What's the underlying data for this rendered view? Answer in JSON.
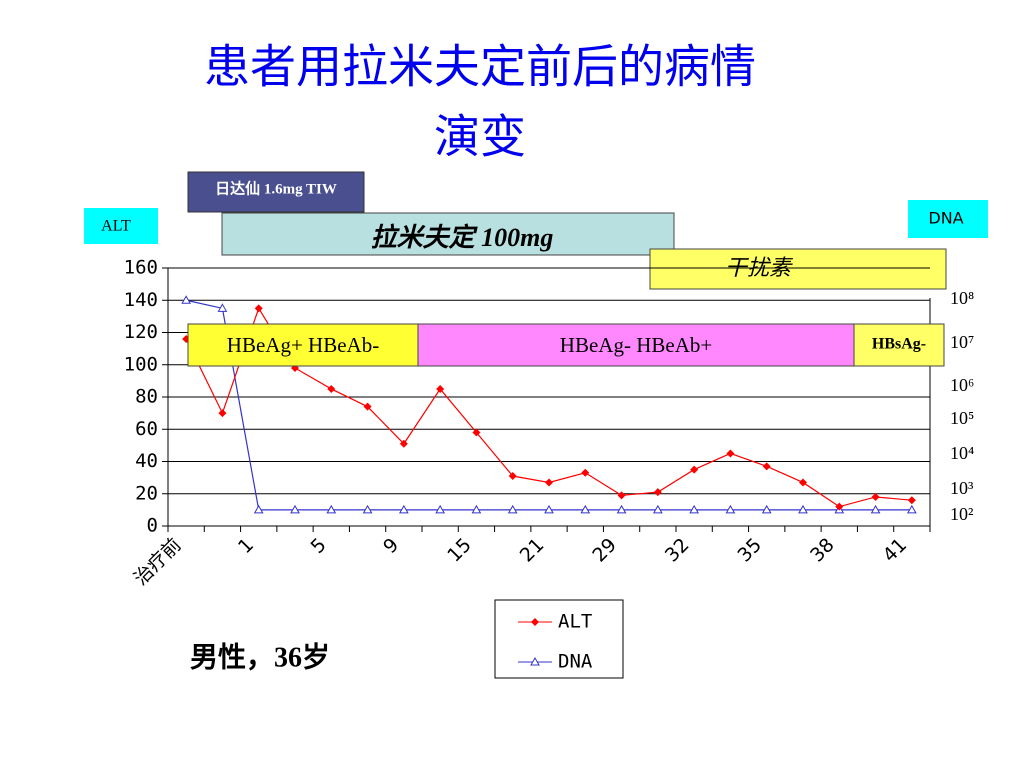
{
  "chart_data": {
    "type": "line",
    "title": [
      "患者用拉米夫定前后的病情",
      "演变"
    ],
    "categories": [
      "治疗前",
      null,
      "1",
      null,
      "5",
      null,
      "9",
      null,
      "15",
      null,
      "21",
      null,
      "29",
      null,
      "32",
      null,
      "35",
      null,
      "38",
      null,
      "41"
    ],
    "series": [
      {
        "name": "ALT",
        "color": "#ff0000",
        "marker": "diamond",
        "values": [
          116,
          70,
          135,
          98,
          85,
          74,
          51,
          85,
          58,
          31,
          27,
          33,
          19,
          21,
          35,
          45,
          37,
          27,
          12,
          18,
          16
        ]
      },
      {
        "name": "DNA",
        "color": "#3333cc",
        "marker": "triangle",
        "values": [
          140,
          135,
          10,
          10,
          10,
          10,
          10,
          10,
          10,
          10,
          10,
          10,
          10,
          10,
          10,
          10,
          10,
          10,
          10,
          10,
          10
        ]
      }
    ],
    "ylim": [
      0,
      160
    ],
    "yticks": [
      0,
      20,
      40,
      60,
      80,
      100,
      120,
      140,
      160
    ],
    "grid": true,
    "right_axis_labels": [
      "10⁸",
      "10⁷",
      "10⁶",
      "10⁵",
      "10⁴",
      "10³",
      "10²"
    ],
    "annotations": {
      "thymosin": "日达仙 1.6mg TIW",
      "alt_box": "ALT",
      "dna_box": "DNA",
      "lamivudine": "拉米夫定 100mg",
      "interferon": "干扰素",
      "phase1": "HBeAg+ HBeAb-",
      "phase2": "HBeAg- HBeAb+",
      "phase3": "HBsAg-",
      "patient": "男性，36岁"
    }
  }
}
